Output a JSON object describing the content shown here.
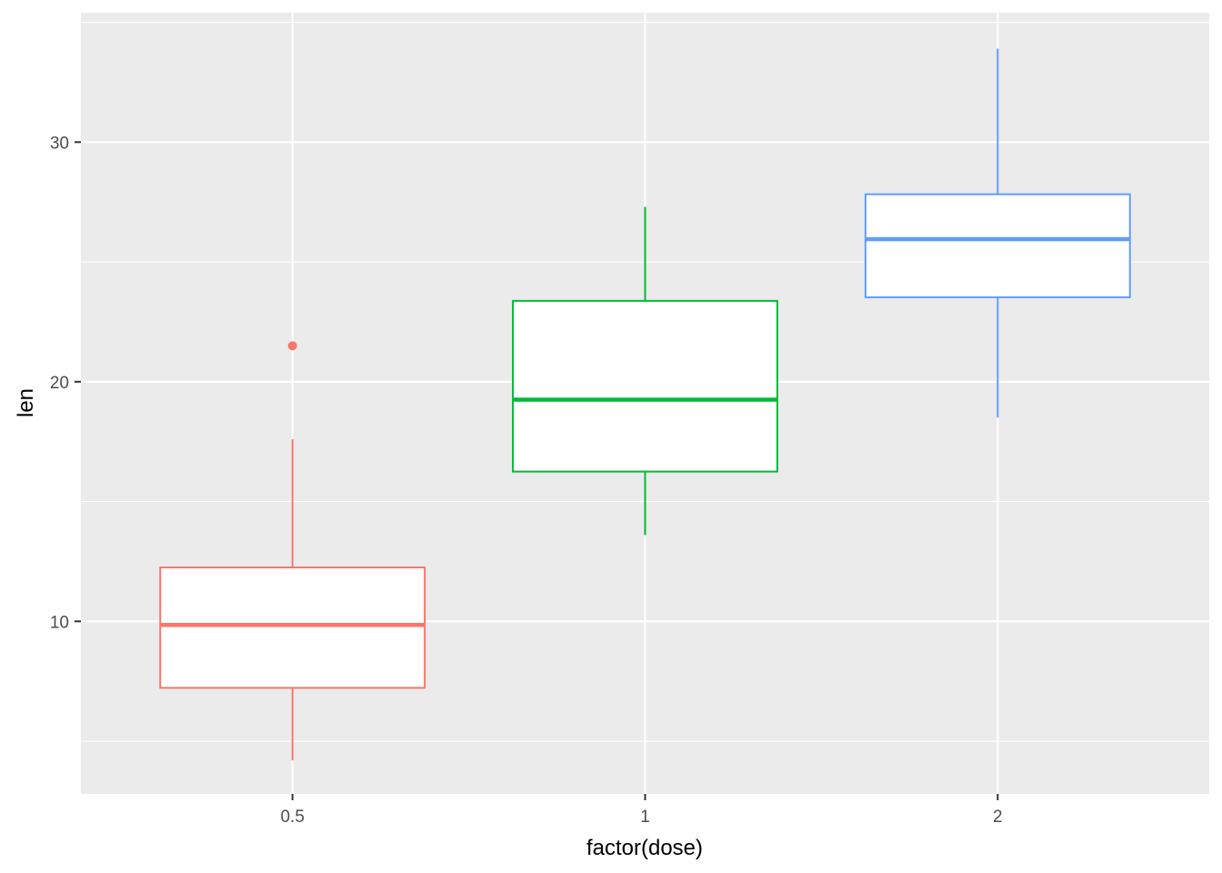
{
  "chart_data": {
    "type": "boxplot",
    "xlabel": "factor(dose)",
    "ylabel": "len",
    "categories": [
      "0.5",
      "1",
      "2"
    ],
    "ylim": [
      2.8,
      35.4
    ],
    "y_ticks": [
      10,
      20,
      30
    ],
    "y_tick_labels": [
      "10",
      "20",
      "30"
    ],
    "y_minor_ticks": [
      5,
      15,
      25,
      35
    ],
    "grid": true,
    "legend": "none",
    "colors": {
      "panel_background": "#ebebeb",
      "grid_line": "#ffffff",
      "box_fill": "#ffffff",
      "tick_label": "#4d4d4d",
      "axis_title": "#000000"
    },
    "boxes": [
      {
        "category": "0.5",
        "color": "#f8766d",
        "whisker_low": 4.2,
        "q1": 7.225,
        "median": 9.85,
        "q3": 12.25,
        "whisker_high": 17.6,
        "outliers": [
          21.5
        ]
      },
      {
        "category": "1",
        "color": "#00ba38",
        "whisker_low": 13.6,
        "q1": 16.25,
        "median": 19.25,
        "q3": 23.375,
        "whisker_high": 27.3,
        "outliers": []
      },
      {
        "category": "2",
        "color": "#619cff",
        "whisker_low": 18.5,
        "q1": 23.525,
        "median": 25.95,
        "q3": 27.825,
        "whisker_high": 33.9,
        "outliers": []
      }
    ]
  }
}
